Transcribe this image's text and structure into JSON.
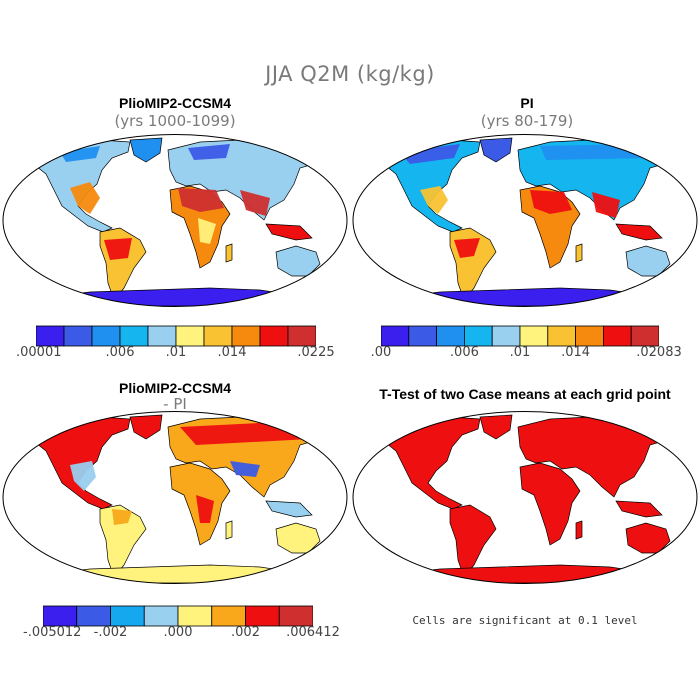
{
  "title": "JJA Q2M (kg/kg)",
  "colors": {
    "land_mask_red": "#ee1010",
    "ocean": "#ffffff",
    "outline": "#000000"
  },
  "panels": [
    {
      "id": "p1",
      "title": "PlioMIP2-CCSM4",
      "subtitle": "(yrs 1000-1099)",
      "colors": [
        "#3a1fef",
        "#3b5ae6",
        "#1f8ff0",
        "#15b6ef",
        "#99cfef",
        "#fff27d",
        "#f8c232",
        "#f58a0e",
        "#ee1010",
        "#cf2f2f"
      ],
      "tick_labels": [
        ".00001",
        ".006",
        ".01",
        ".014",
        ".0225"
      ],
      "tick_positions": [
        0,
        3,
        5,
        7,
        10
      ]
    },
    {
      "id": "p2",
      "title": "PI",
      "subtitle": "(yrs 80-179)",
      "colors": [
        "#3a1fef",
        "#3b5ae6",
        "#1f8ff0",
        "#15b6ef",
        "#99cfef",
        "#fff27d",
        "#f8c232",
        "#f58a0e",
        "#ee1010",
        "#cf2f2f"
      ],
      "tick_labels": [
        ".00",
        ".006",
        ".01",
        ".014",
        ".02083"
      ],
      "tick_positions": [
        0,
        3,
        5,
        7,
        10
      ]
    },
    {
      "id": "p3",
      "title": "PlioMIP2-CCSM4",
      "subtitle": "- PI",
      "colors": [
        "#3a1fef",
        "#3b5ae6",
        "#15a8ef",
        "#99cfef",
        "#fff27d",
        "#f8a81a",
        "#ee1010",
        "#cf2f2f"
      ],
      "tick_labels": [
        "-.005012",
        "-.002",
        ".000",
        ".002",
        ".006412"
      ],
      "tick_positions": [
        0,
        2,
        4,
        6,
        8
      ]
    },
    {
      "id": "p4",
      "title": "T-Test of two Case means at each grid point",
      "subtitle": "",
      "footnote": "Cells are significant at 0.1 level"
    }
  ]
}
